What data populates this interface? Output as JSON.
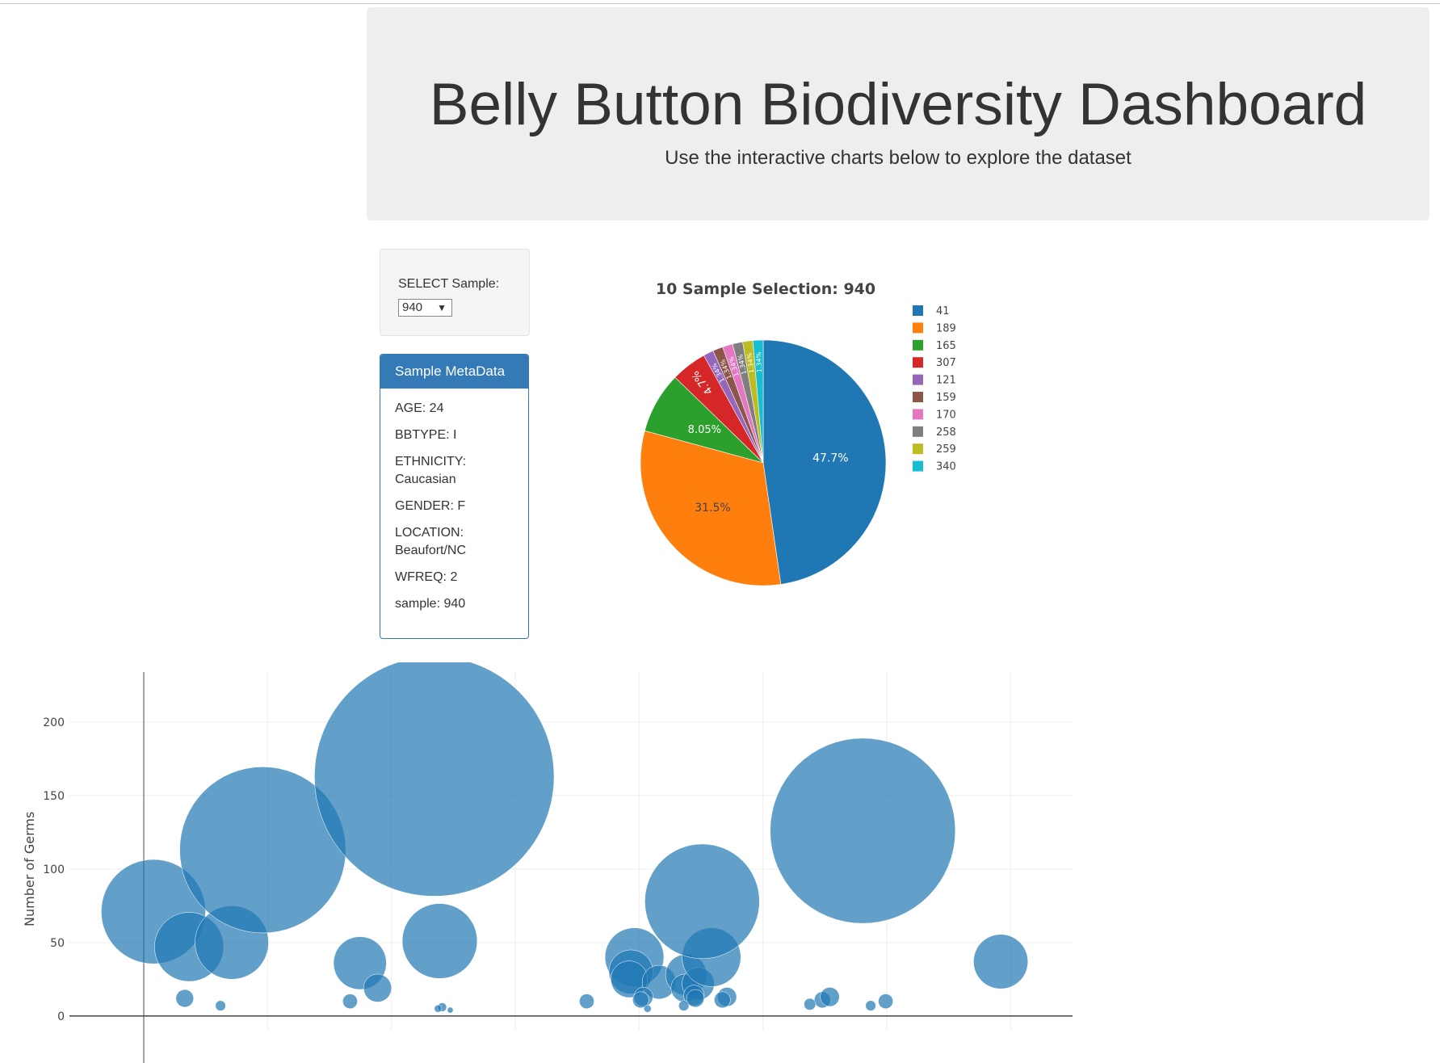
{
  "header": {
    "title": "Belly Button Biodiversity Dashboard",
    "subtitle": "Use the interactive charts below to explore the dataset"
  },
  "selector": {
    "label": "SELECT Sample:",
    "value": "940"
  },
  "metadata": {
    "heading": "Sample MetaData",
    "lines": [
      "AGE: 24",
      "BBTYPE: I",
      "ETHNICITY: Caucasian",
      "GENDER: F",
      "LOCATION: Beaufort/NC",
      "WFREQ: 2",
      "sample: 940"
    ]
  },
  "chart_data": [
    {
      "type": "pie",
      "title": "10 Sample Selection: 940",
      "labels": [
        "41",
        "189",
        "165",
        "307",
        "121",
        "159",
        "170",
        "258",
        "259",
        "340"
      ],
      "values": [
        47.7,
        31.5,
        8.05,
        4.7,
        1.34,
        1.34,
        1.34,
        1.34,
        1.34,
        1.34
      ],
      "value_labels": [
        "47.7%",
        "31.5%",
        "8.05%",
        "4.7%",
        "1.34%",
        "1.34%",
        "1.34%",
        "1.34%",
        "1.34%",
        "1.34%"
      ],
      "colors": [
        "#1f77b4",
        "#ff7f0e",
        "#2ca02c",
        "#d62728",
        "#9467bd",
        "#8c564b",
        "#e377c2",
        "#7f7f7f",
        "#bcbd22",
        "#17becf"
      ],
      "legend_position": "right",
      "sort": "descending, clockwise from top"
    },
    {
      "type": "scatter",
      "mode": "bubble",
      "ylabel": "Number of Germs",
      "xlabel": "",
      "yticks": [
        0,
        50,
        100,
        150,
        200
      ],
      "ylim": [
        -10,
        234
      ],
      "xlim": [
        -600,
        7500
      ],
      "x_grid_step": 1000,
      "marker_color": "#1f77b4",
      "marker_opacity": 0.7,
      "size": "marker diameter proportional to y value",
      "points": [
        {
          "x": 78,
          "y": 71
        },
        {
          "x": 366,
          "y": 47
        },
        {
          "x": 711,
          "y": 50
        },
        {
          "x": 961,
          "y": 113
        },
        {
          "x": 1746,
          "y": 36
        },
        {
          "x": 1888,
          "y": 19
        },
        {
          "x": 2346,
          "y": 163
        },
        {
          "x": 2390,
          "y": 51
        },
        {
          "x": 3962,
          "y": 40
        },
        {
          "x": 3934,
          "y": 30
        },
        {
          "x": 3920,
          "y": 25
        },
        {
          "x": 4161,
          "y": 23
        },
        {
          "x": 4380,
          "y": 28
        },
        {
          "x": 4370,
          "y": 19
        },
        {
          "x": 4477,
          "y": 22
        },
        {
          "x": 4584,
          "y": 40
        },
        {
          "x": 4509,
          "y": 78
        },
        {
          "x": 5806,
          "y": 126
        },
        {
          "x": 6920,
          "y": 37
        },
        {
          "x": 331,
          "y": 12
        },
        {
          "x": 4035,
          "y": 13
        },
        {
          "x": 4013,
          "y": 11
        },
        {
          "x": 4443,
          "y": 14
        },
        {
          "x": 4454,
          "y": 12
        },
        {
          "x": 4710,
          "y": 13
        },
        {
          "x": 4672,
          "y": 11
        },
        {
          "x": 5480,
          "y": 11
        },
        {
          "x": 5540,
          "y": 13
        },
        {
          "x": 5991,
          "y": 10
        },
        {
          "x": 1666,
          "y": 10
        },
        {
          "x": 3577,
          "y": 10
        },
        {
          "x": 5379,
          "y": 8
        },
        {
          "x": 5870,
          "y": 7
        },
        {
          "x": 4361,
          "y": 7
        },
        {
          "x": 620,
          "y": 7
        },
        {
          "x": 4068,
          "y": 5
        },
        {
          "x": 2410,
          "y": 6
        },
        {
          "x": 2376,
          "y": 5
        },
        {
          "x": 2475,
          "y": 4
        }
      ]
    }
  ]
}
